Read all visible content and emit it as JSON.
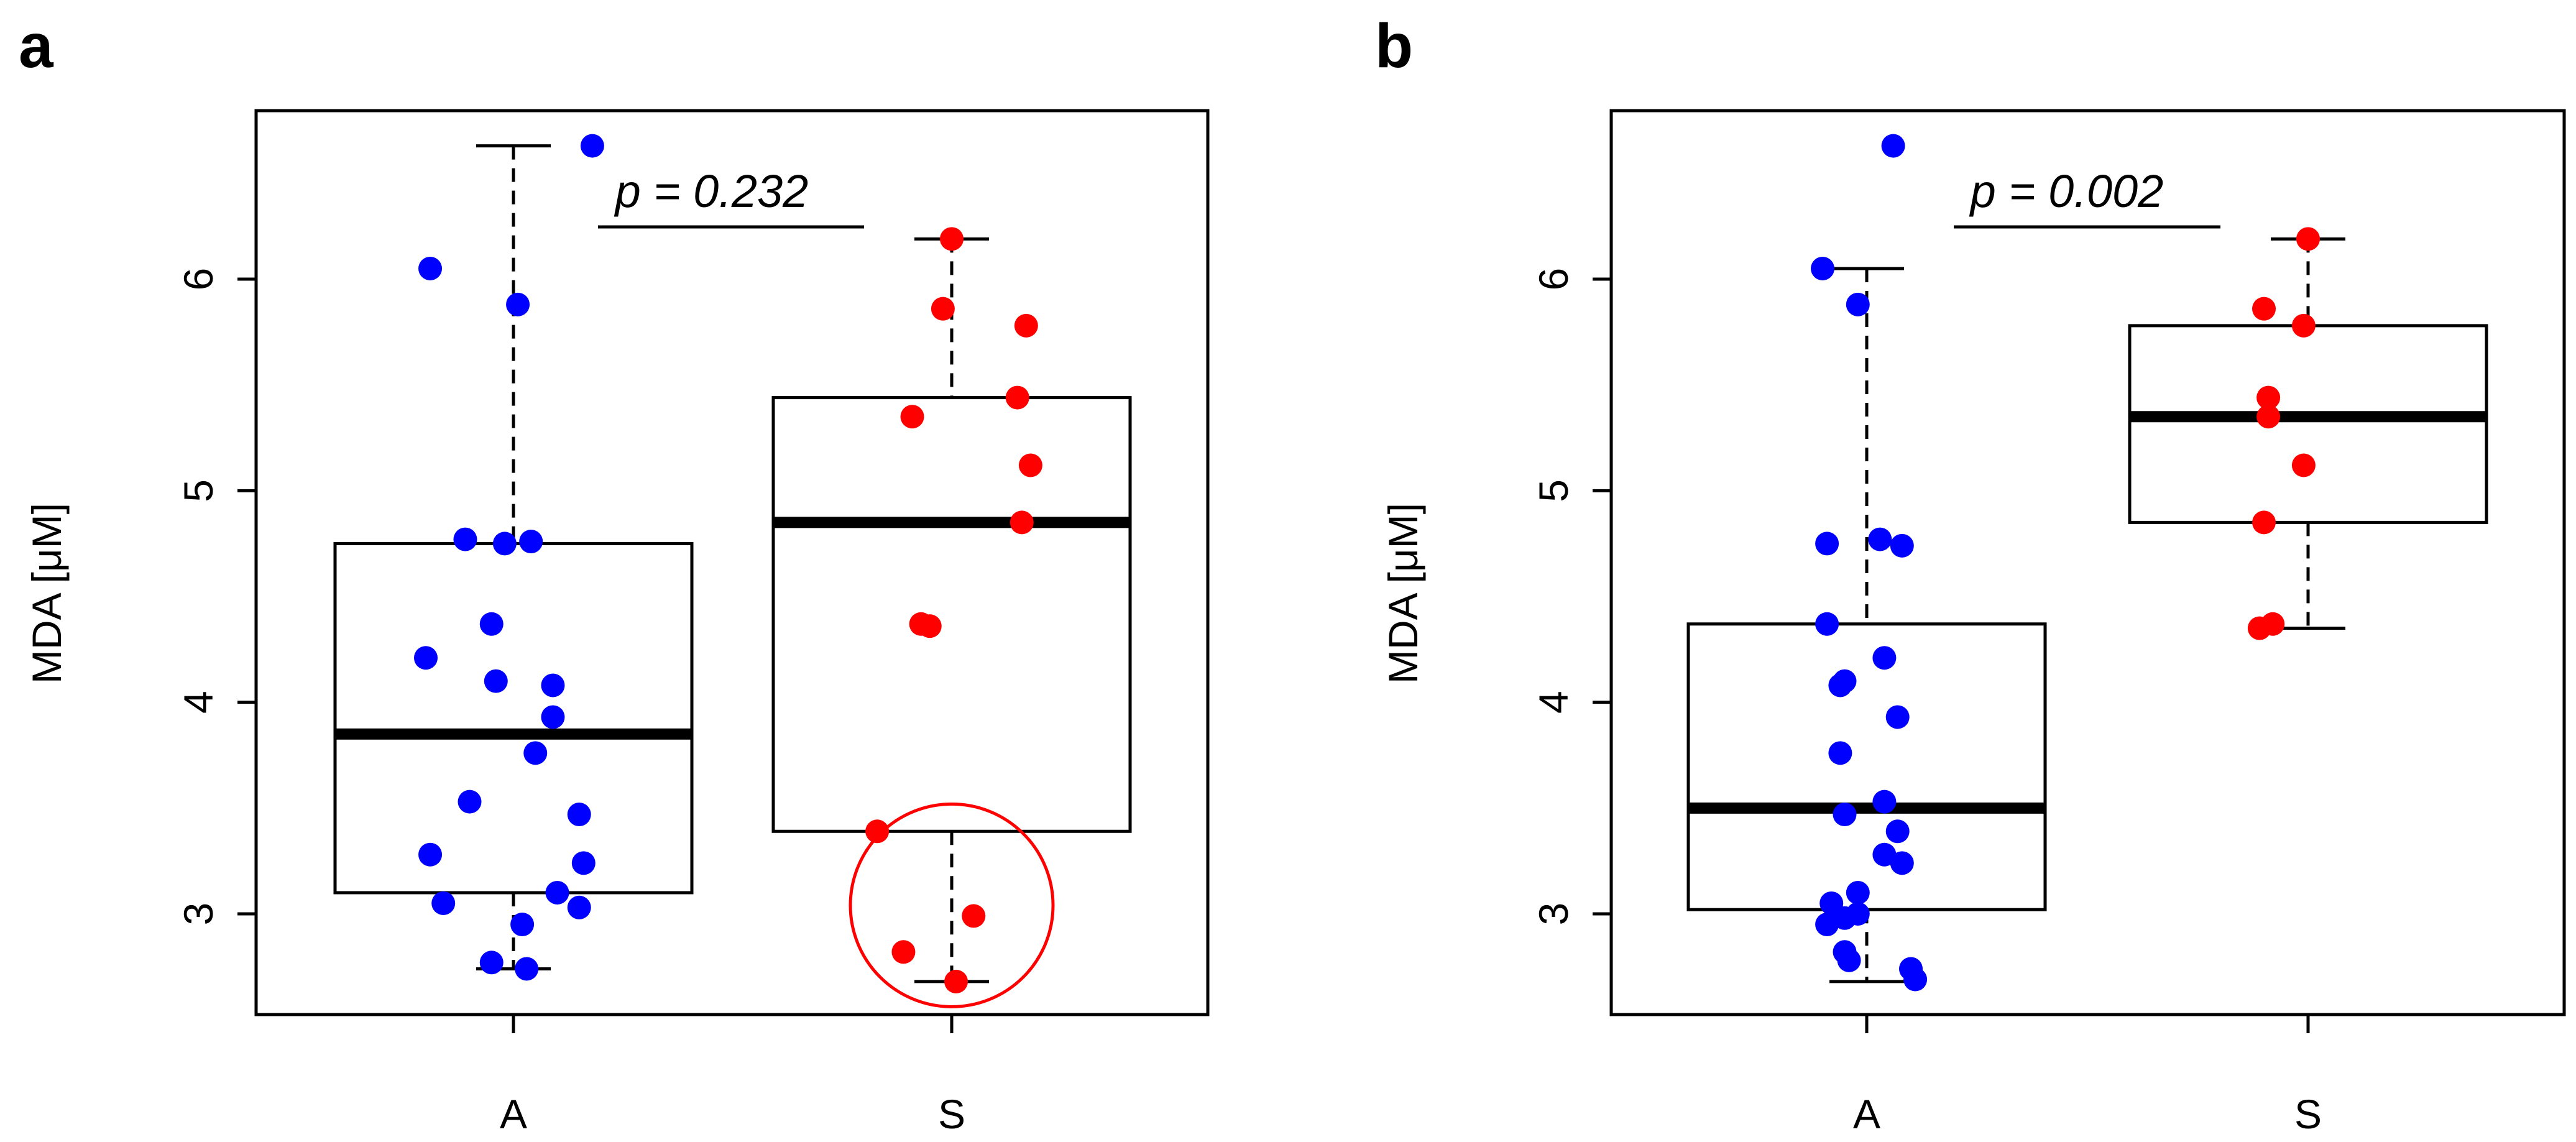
{
  "chart_data": [
    {
      "type": "boxplot",
      "panel_label": "a",
      "ylabel": "MDA [μM]",
      "ylim": [
        2.5,
        6.75
      ],
      "yticks": [
        "3",
        "4",
        "5",
        "6"
      ],
      "categories": [
        "A",
        "S"
      ],
      "annotation": "p =  0.232",
      "groups": [
        {
          "name": "A",
          "color": "#0000ff",
          "stats": {
            "whisker_low": 2.74,
            "q1": 3.1,
            "median": 3.85,
            "q3": 4.75,
            "whisker_high": 6.63
          },
          "points": [
            {
              "dx": 0.18,
              "y": 6.63
            },
            {
              "dx": -0.19,
              "y": 6.05
            },
            {
              "dx": 0.01,
              "y": 5.88
            },
            {
              "dx": -0.11,
              "y": 4.77
            },
            {
              "dx": -0.02,
              "y": 4.75
            },
            {
              "dx": 0.04,
              "y": 4.76
            },
            {
              "dx": -0.05,
              "y": 4.37
            },
            {
              "dx": -0.2,
              "y": 4.21
            },
            {
              "dx": -0.04,
              "y": 4.1
            },
            {
              "dx": 0.09,
              "y": 4.08
            },
            {
              "dx": 0.09,
              "y": 3.93
            },
            {
              "dx": 0.05,
              "y": 3.76
            },
            {
              "dx": -0.1,
              "y": 3.53
            },
            {
              "dx": 0.15,
              "y": 3.47
            },
            {
              "dx": -0.19,
              "y": 3.28
            },
            {
              "dx": 0.16,
              "y": 3.24
            },
            {
              "dx": 0.1,
              "y": 3.1
            },
            {
              "dx": -0.16,
              "y": 3.05
            },
            {
              "dx": 0.15,
              "y": 3.03
            },
            {
              "dx": 0.02,
              "y": 2.95
            },
            {
              "dx": -0.05,
              "y": 2.77
            },
            {
              "dx": 0.03,
              "y": 2.74
            }
          ]
        },
        {
          "name": "S",
          "color": "#ff0000",
          "stats": {
            "whisker_low": 2.68,
            "q1": 3.39,
            "median": 4.85,
            "q3": 5.44,
            "whisker_high": 6.19
          },
          "points": [
            {
              "dx": 0.0,
              "y": 6.19
            },
            {
              "dx": -0.02,
              "y": 5.86
            },
            {
              "dx": 0.17,
              "y": 5.78
            },
            {
              "dx": 0.15,
              "y": 5.44
            },
            {
              "dx": -0.09,
              "y": 5.35
            },
            {
              "dx": 0.18,
              "y": 5.12
            },
            {
              "dx": 0.16,
              "y": 4.85
            },
            {
              "dx": -0.07,
              "y": 4.37
            },
            {
              "dx": -0.05,
              "y": 4.36
            },
            {
              "dx": -0.17,
              "y": 3.39
            },
            {
              "dx": 0.05,
              "y": 2.99
            },
            {
              "dx": -0.11,
              "y": 2.82
            },
            {
              "dx": 0.01,
              "y": 2.68
            }
          ]
        }
      ],
      "highlight_circle": {
        "group": "S",
        "center_y": 3.04,
        "color": "#ff0000"
      }
    },
    {
      "type": "boxplot",
      "panel_label": "b",
      "ylabel": "MDA [μM]",
      "ylim": [
        2.5,
        6.75
      ],
      "yticks": [
        "3",
        "4",
        "5",
        "6"
      ],
      "categories": [
        "A",
        "S"
      ],
      "annotation": "p =  0.002",
      "groups": [
        {
          "name": "A",
          "color": "#0000ff",
          "stats": {
            "whisker_low": 2.68,
            "q1": 3.02,
            "median": 3.5,
            "q3": 4.37,
            "whisker_high": 6.05
          },
          "points": [
            {
              "dx": 0.06,
              "y": 6.63
            },
            {
              "dx": -0.1,
              "y": 6.05
            },
            {
              "dx": -0.02,
              "y": 5.88
            },
            {
              "dx": 0.03,
              "y": 4.77
            },
            {
              "dx": -0.09,
              "y": 4.75
            },
            {
              "dx": 0.08,
              "y": 4.74
            },
            {
              "dx": -0.09,
              "y": 4.37
            },
            {
              "dx": 0.04,
              "y": 4.21
            },
            {
              "dx": -0.05,
              "y": 4.1
            },
            {
              "dx": -0.06,
              "y": 4.08
            },
            {
              "dx": 0.07,
              "y": 3.93
            },
            {
              "dx": -0.06,
              "y": 3.76
            },
            {
              "dx": 0.04,
              "y": 3.53
            },
            {
              "dx": -0.05,
              "y": 3.47
            },
            {
              "dx": 0.07,
              "y": 3.39
            },
            {
              "dx": 0.04,
              "y": 3.28
            },
            {
              "dx": 0.08,
              "y": 3.24
            },
            {
              "dx": -0.02,
              "y": 3.1
            },
            {
              "dx": -0.08,
              "y": 3.05
            },
            {
              "dx": -0.02,
              "y": 3.0
            },
            {
              "dx": -0.05,
              "y": 2.98
            },
            {
              "dx": -0.09,
              "y": 2.95
            },
            {
              "dx": -0.05,
              "y": 2.82
            },
            {
              "dx": -0.04,
              "y": 2.78
            },
            {
              "dx": 0.1,
              "y": 2.74
            },
            {
              "dx": 0.11,
              "y": 2.69
            }
          ]
        },
        {
          "name": "S",
          "color": "#ff0000",
          "stats": {
            "whisker_low": 4.35,
            "q1": 4.85,
            "median": 5.35,
            "q3": 5.78,
            "whisker_high": 6.19
          },
          "points": [
            {
              "dx": 0.0,
              "y": 6.19
            },
            {
              "dx": -0.1,
              "y": 5.86
            },
            {
              "dx": -0.01,
              "y": 5.78
            },
            {
              "dx": -0.09,
              "y": 5.44
            },
            {
              "dx": -0.09,
              "y": 5.35
            },
            {
              "dx": -0.01,
              "y": 5.12
            },
            {
              "dx": -0.1,
              "y": 4.85
            },
            {
              "dx": -0.08,
              "y": 4.37
            },
            {
              "dx": -0.11,
              "y": 4.35
            }
          ]
        }
      ]
    }
  ]
}
